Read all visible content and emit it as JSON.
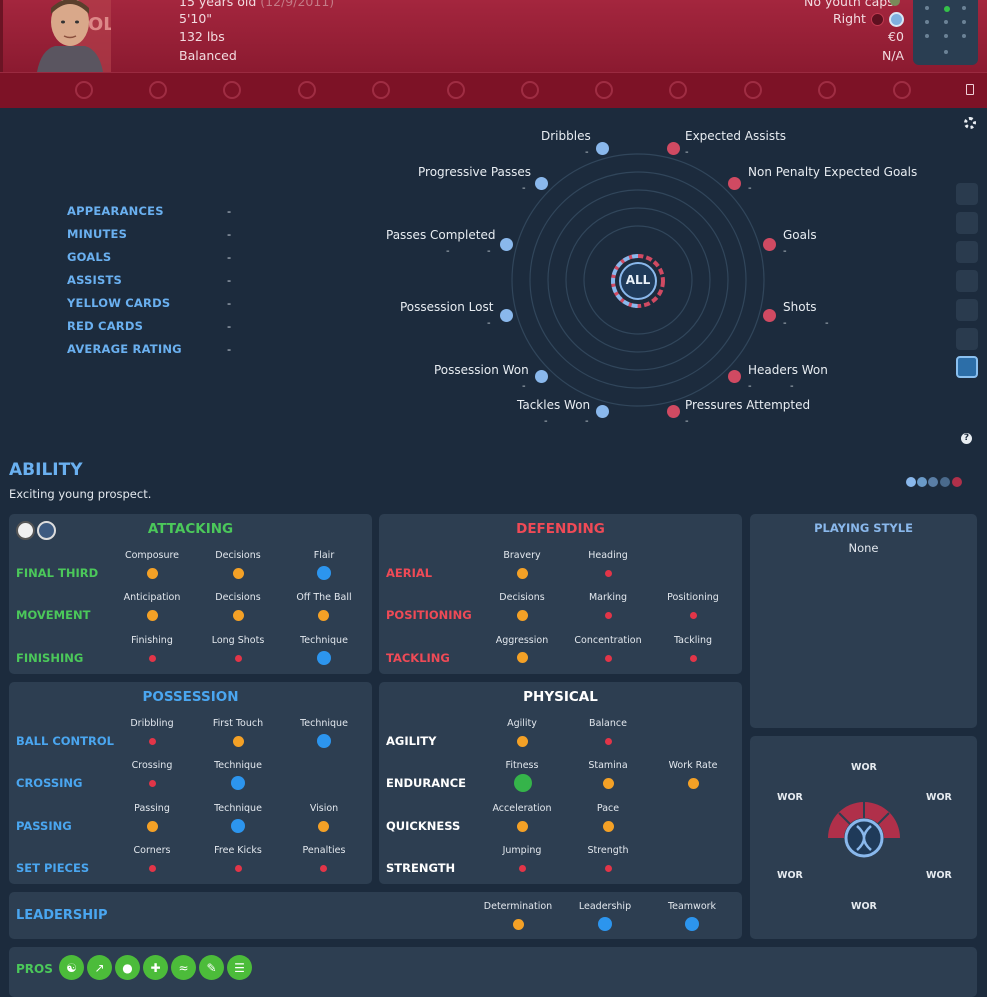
{
  "header": {
    "age_text": "15 years old",
    "dob": "(12/9/2011)",
    "height": "5'10\"",
    "weight": "132 lbs",
    "personality": "Balanced",
    "youth_caps": "No youth caps",
    "foot": "Right",
    "value": "€0",
    "contract": "N/A"
  },
  "stats": [
    {
      "label": "APPEARANCES",
      "value": "-"
    },
    {
      "label": "MINUTES",
      "value": "-"
    },
    {
      "label": "GOALS",
      "value": "-"
    },
    {
      "label": "ASSISTS",
      "value": "-"
    },
    {
      "label": "YELLOW CARDS",
      "value": "-"
    },
    {
      "label": "RED CARDS",
      "value": "-"
    },
    {
      "label": "AVERAGE RATING",
      "value": "-"
    }
  ],
  "radar": {
    "center_label": "ALL",
    "metrics": [
      {
        "label": "Dribbles",
        "value": "-"
      },
      {
        "label": "Expected Assists",
        "value": "-"
      },
      {
        "label": "Progressive Passes",
        "value": "-"
      },
      {
        "label": "Non Penalty Expected Goals",
        "value": "-"
      },
      {
        "label": "Passes Completed",
        "value": "-",
        "value2": "-"
      },
      {
        "label": "Goals",
        "value": "-"
      },
      {
        "label": "Possession Lost",
        "value": "-"
      },
      {
        "label": "Shots",
        "value": "-",
        "value2": "-"
      },
      {
        "label": "Possession Won",
        "value": "-"
      },
      {
        "label": "Headers Won",
        "value": "-",
        "value2": "-"
      },
      {
        "label": "Tackles Won",
        "value": "-",
        "value2": "-"
      },
      {
        "label": "Pressures Attempted",
        "value": "-"
      }
    ],
    "colors": {
      "blue": "#8ab8ec",
      "red": "#d04a62"
    }
  },
  "ability": {
    "title": "ABILITY",
    "summary": "Exciting young prospect."
  },
  "attacking": {
    "title": "ATTACKING",
    "groups": [
      {
        "label": "FINAL THIRD",
        "attrs": [
          "Composure",
          "Decisions",
          "Flair"
        ]
      },
      {
        "label": "MOVEMENT",
        "attrs": [
          "Anticipation",
          "Decisions",
          "Off The Ball"
        ]
      },
      {
        "label": "FINISHING",
        "attrs": [
          "Finishing",
          "Long Shots",
          "Technique"
        ]
      }
    ]
  },
  "defending": {
    "title": "DEFENDING",
    "groups": [
      {
        "label": "AERIAL",
        "attrs": [
          "Bravery",
          "Heading"
        ]
      },
      {
        "label": "POSITIONING",
        "attrs": [
          "Decisions",
          "Marking",
          "Positioning"
        ]
      },
      {
        "label": "TACKLING",
        "attrs": [
          "Aggression",
          "Concentration",
          "Tackling"
        ]
      }
    ]
  },
  "possession": {
    "title": "POSSESSION",
    "groups": [
      {
        "label": "BALL CONTROL",
        "attrs": [
          "Dribbling",
          "First Touch",
          "Technique"
        ]
      },
      {
        "label": "CROSSING",
        "attrs": [
          "Crossing",
          "Technique"
        ]
      },
      {
        "label": "PASSING",
        "attrs": [
          "Passing",
          "Technique",
          "Vision"
        ]
      },
      {
        "label": "SET PIECES",
        "attrs": [
          "Corners",
          "Free Kicks",
          "Penalties"
        ]
      }
    ]
  },
  "physical": {
    "title": "PHYSICAL",
    "groups": [
      {
        "label": "AGILITY",
        "attrs": [
          "Agility",
          "Balance"
        ]
      },
      {
        "label": "ENDURANCE",
        "attrs": [
          "Fitness",
          "Stamina",
          "Work Rate"
        ]
      },
      {
        "label": "QUICKNESS",
        "attrs": [
          "Acceleration",
          "Pace"
        ]
      },
      {
        "label": "STRENGTH",
        "attrs": [
          "Jumping",
          "Strength"
        ]
      }
    ]
  },
  "leadership": {
    "label": "LEADERSHIP",
    "attrs": [
      "Determination",
      "Leadership",
      "Teamwork"
    ]
  },
  "playing_style": {
    "title": "PLAYING STYLE",
    "value": "None"
  },
  "dna": {
    "top": "WOR",
    "left_upper": "WOR",
    "right_upper": "WOR",
    "left_lower": "WOR",
    "right_lower": "WOR",
    "bottom": "WOR"
  },
  "pros": {
    "label": "PROS"
  },
  "colors": {
    "attacking": "#4bc85a",
    "defending": "#ef4a56",
    "possession": "#4aa6f0",
    "header": "#a4263e"
  }
}
